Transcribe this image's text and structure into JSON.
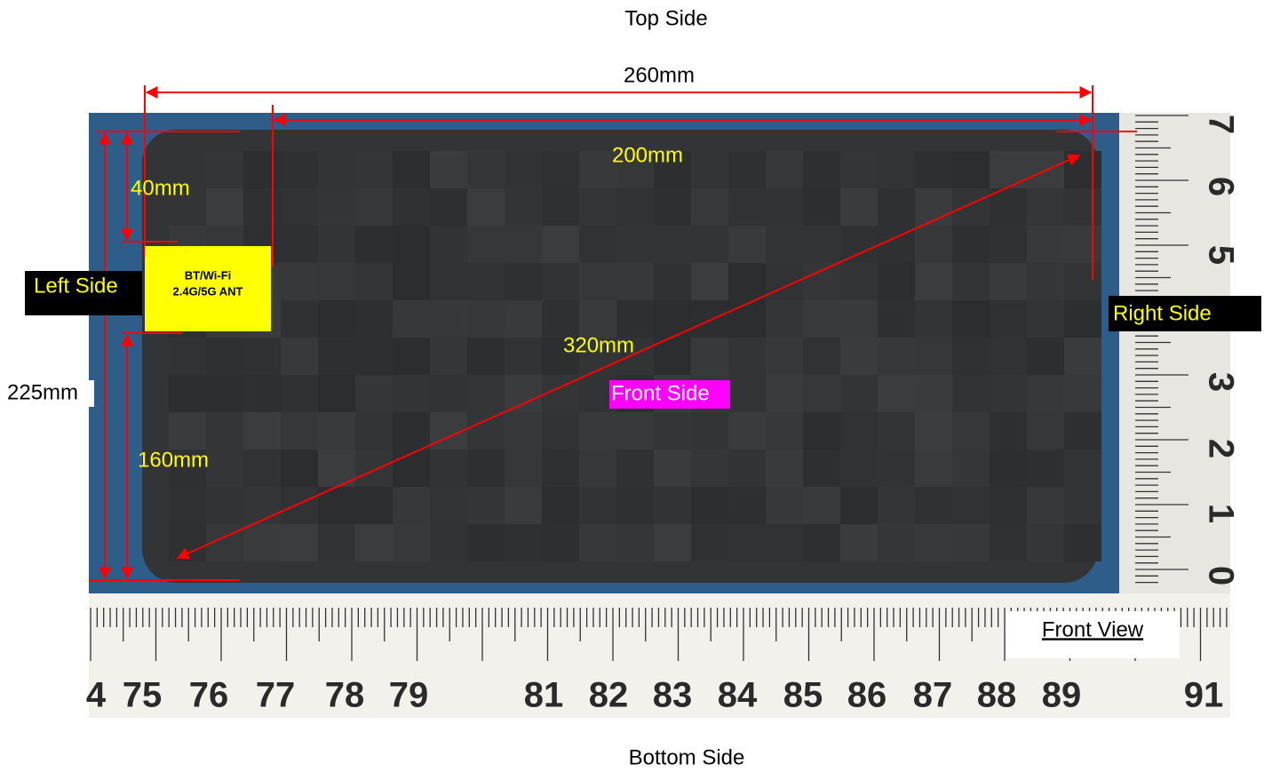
{
  "labels": {
    "top": "Top Side",
    "bottom": "Bottom Side",
    "left": "Left Side",
    "right": "Right Side",
    "front": "Front Side",
    "view": "Front View"
  },
  "dimensions": {
    "width": "260mm",
    "antenna_span": "200mm",
    "antenna_top": "40mm",
    "height": "225mm",
    "antenna_bottom": "160mm",
    "diagonal": "320mm"
  },
  "antenna": {
    "line1": "BT/Wi-Fi",
    "line2": "2.4G/5G ANT"
  },
  "ruler": {
    "bottom": [
      "4",
      "75",
      "76",
      "77",
      "78",
      "79",
      "81",
      "82",
      "83",
      "84",
      "85",
      "86",
      "87",
      "88",
      "89",
      "91"
    ],
    "right": [
      "7",
      "6",
      "5",
      "3",
      "2",
      "1",
      "0"
    ]
  }
}
